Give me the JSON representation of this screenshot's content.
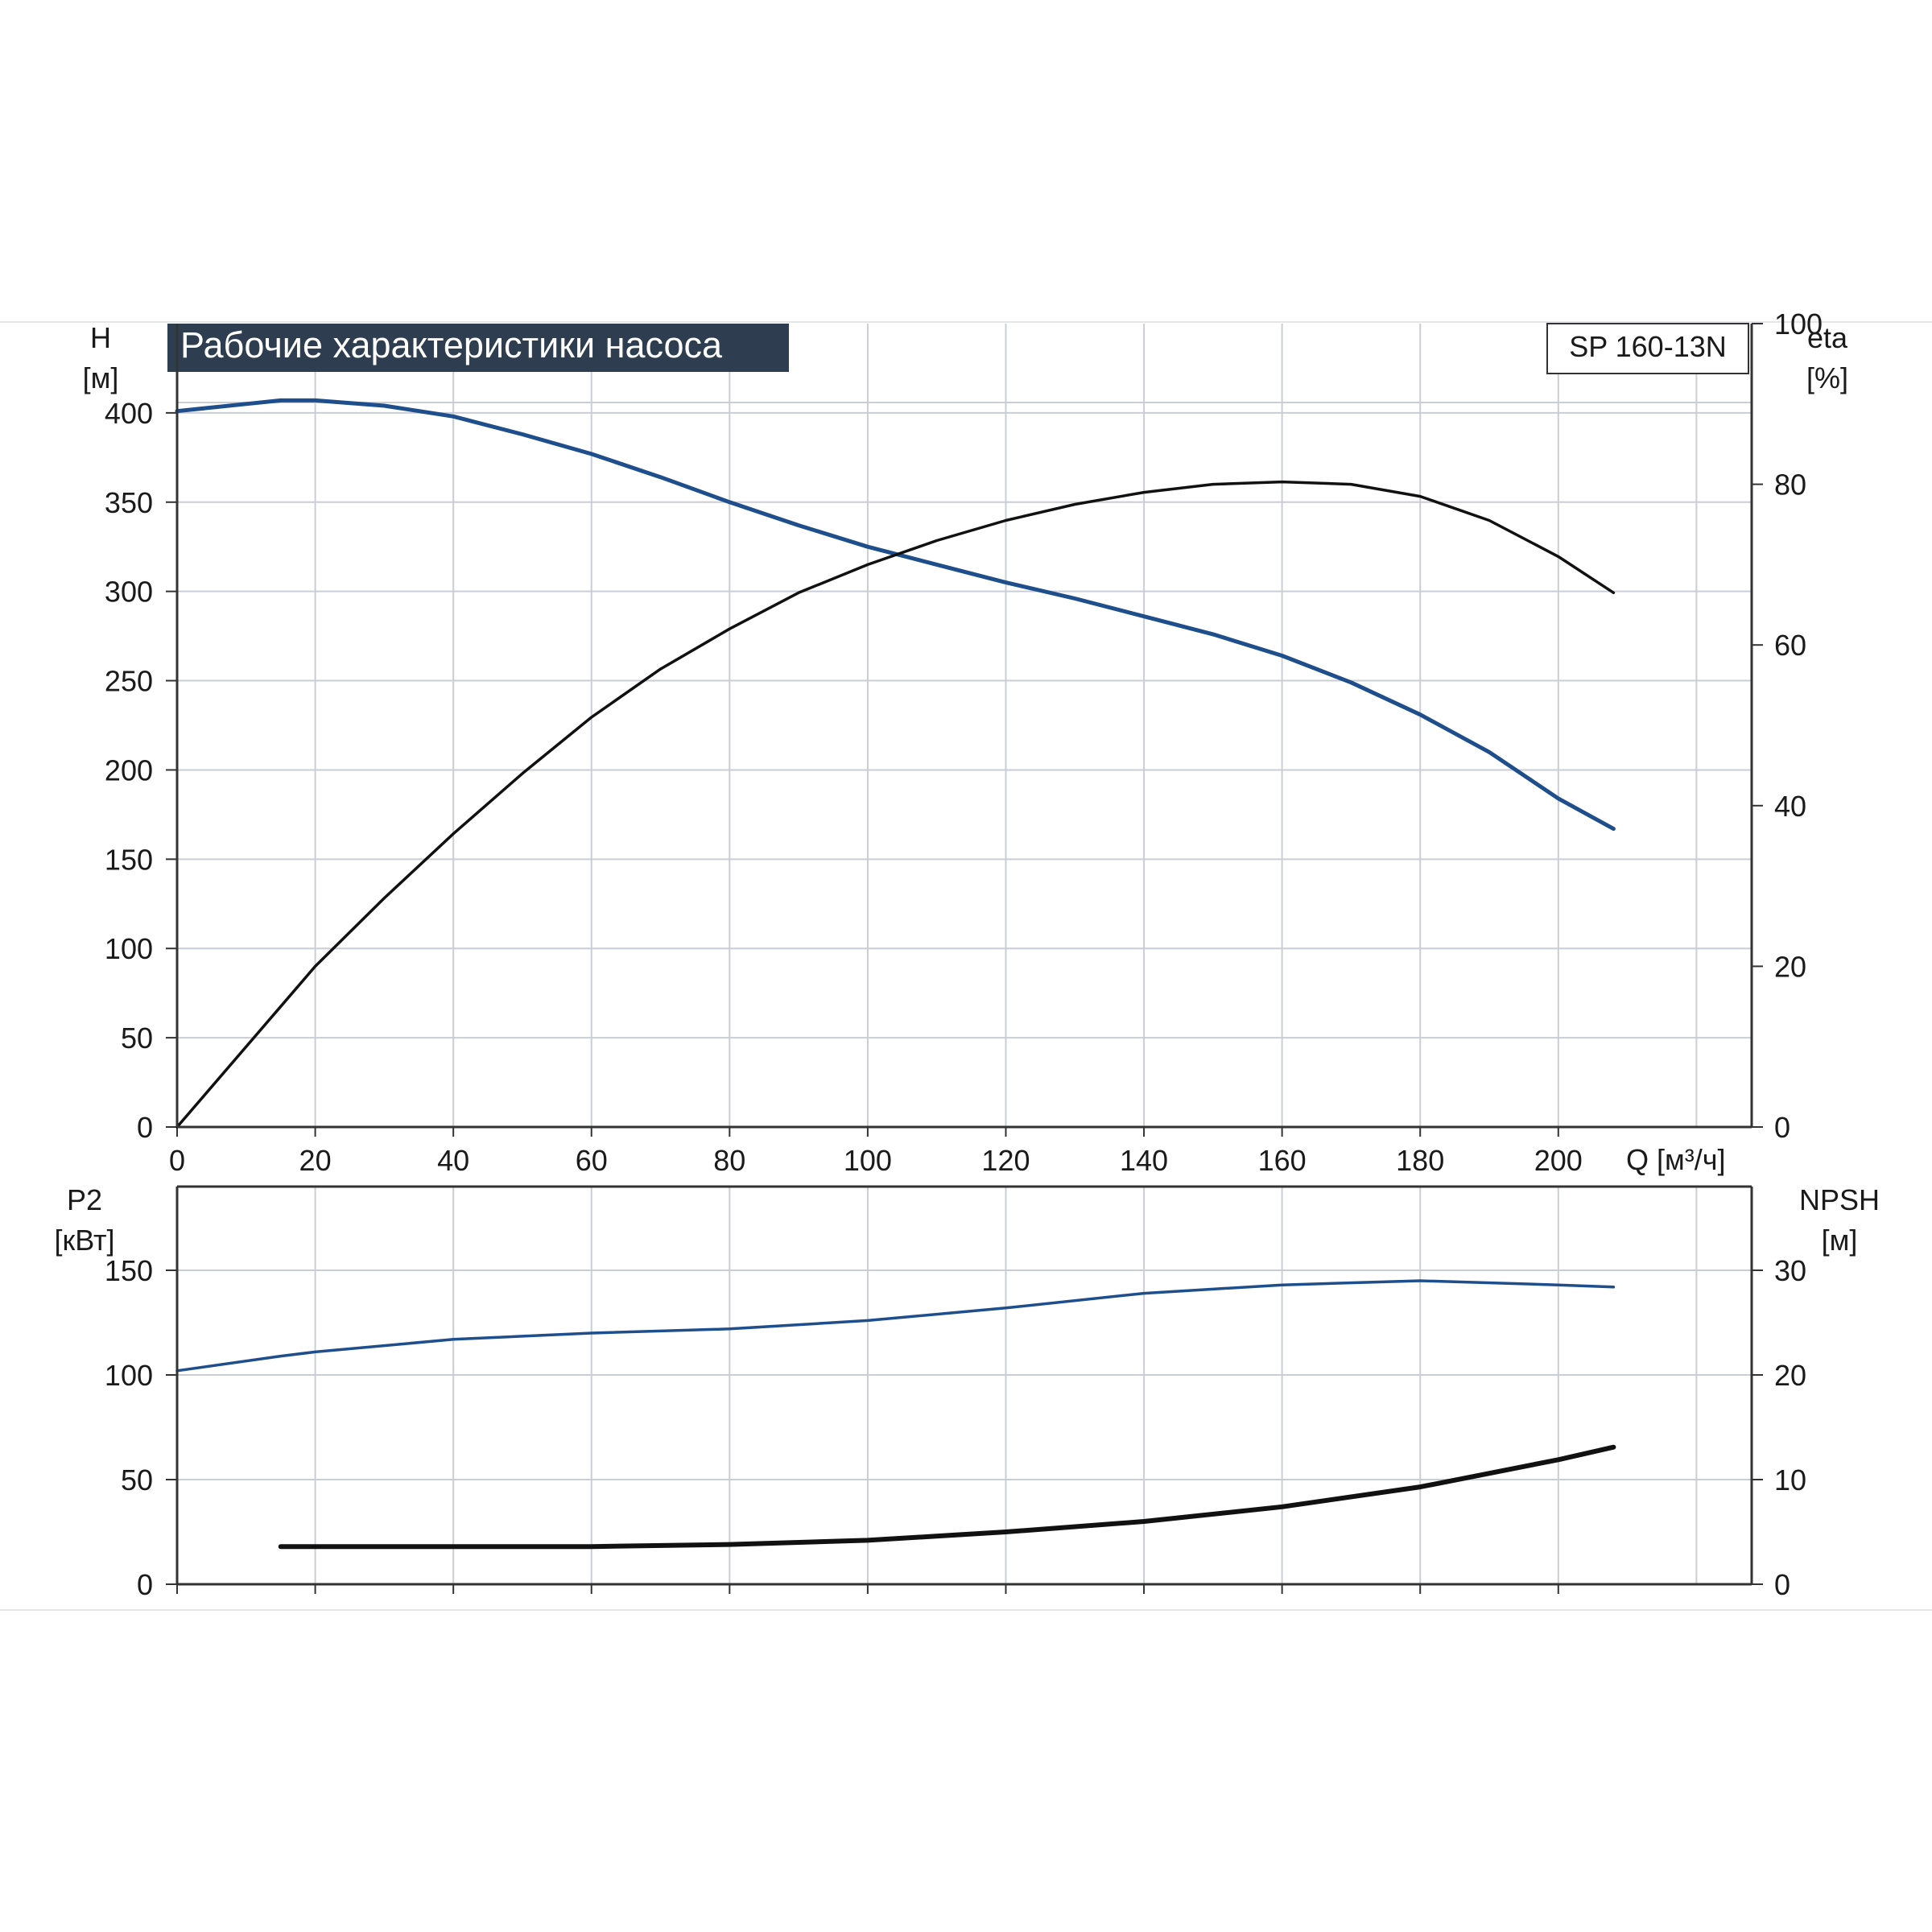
{
  "title": "Рабочие характеристики насоса",
  "model_label": "SP 160-13N",
  "colors": {
    "blue": "#1f4e8c",
    "black": "#111111",
    "grid": "#c9ced6",
    "title_bg": "#2e3d4f"
  },
  "chart_data": [
    {
      "type": "line",
      "name": "upper",
      "x_axis": {
        "label": "Q [м³/ч]",
        "range": [
          0,
          228
        ],
        "ticks": [
          0,
          20,
          40,
          60,
          80,
          100,
          120,
          140,
          160,
          180,
          200
        ]
      },
      "y_left": {
        "label_top": "H",
        "label_unit": "[м]",
        "range": [
          0,
          450
        ],
        "ticks": [
          0,
          50,
          100,
          150,
          200,
          250,
          300,
          350,
          400
        ]
      },
      "y_right": {
        "label_top": "eta",
        "label_unit": "[%]",
        "range": [
          0,
          100
        ],
        "ticks": [
          0,
          20,
          40,
          60,
          80,
          100
        ]
      },
      "grid": true,
      "series": [
        {
          "axis": "left",
          "color": "blue",
          "width": 5,
          "x": [
            0,
            10,
            15,
            20,
            30,
            40,
            50,
            60,
            70,
            80,
            90,
            100,
            110,
            120,
            130,
            140,
            150,
            160,
            170,
            180,
            190,
            200,
            208
          ],
          "y": [
            401,
            405,
            407,
            407,
            404,
            398,
            388,
            377,
            364,
            350,
            337,
            325,
            315,
            305,
            296,
            286,
            276,
            264,
            249,
            231,
            210,
            184,
            167
          ]
        },
        {
          "axis": "right",
          "color": "black",
          "width": 3.5,
          "x": [
            0,
            15,
            20,
            30,
            40,
            50,
            60,
            70,
            80,
            90,
            100,
            110,
            120,
            130,
            140,
            150,
            160,
            170,
            180,
            190,
            200,
            208
          ],
          "y": [
            0,
            15,
            20,
            28.5,
            36.5,
            44,
            51,
            57,
            62,
            66.5,
            70,
            73,
            75.5,
            77.5,
            79,
            80,
            80.3,
            80,
            78.5,
            75.5,
            71,
            66.5
          ]
        }
      ]
    },
    {
      "type": "line",
      "name": "lower",
      "x_axis": {
        "range": [
          0,
          228
        ],
        "ticks": [
          0,
          20,
          40,
          60,
          80,
          100,
          120,
          140,
          160,
          180,
          200
        ]
      },
      "y_left": {
        "label_top": "P2",
        "label_unit": "[кВт]",
        "range": [
          0,
          190
        ],
        "ticks": [
          0,
          50,
          100,
          150
        ]
      },
      "y_right": {
        "label_top": "NPSH",
        "label_unit": "[м]",
        "range": [
          0,
          38
        ],
        "ticks": [
          0,
          10,
          20,
          30
        ]
      },
      "grid": true,
      "series": [
        {
          "axis": "left",
          "color": "blue",
          "width": 3.5,
          "x": [
            0,
            15,
            20,
            40,
            60,
            80,
            100,
            120,
            140,
            160,
            180,
            200,
            208
          ],
          "y": [
            102,
            109,
            111,
            117,
            120,
            122,
            126,
            132,
            139,
            143,
            145,
            143,
            142
          ]
        },
        {
          "axis": "right",
          "color": "black",
          "width": 6,
          "x": [
            15,
            40,
            60,
            80,
            100,
            120,
            140,
            160,
            180,
            200,
            208
          ],
          "y": [
            3.6,
            3.6,
            3.6,
            3.8,
            4.2,
            5.0,
            6.0,
            7.4,
            9.3,
            11.9,
            13.1
          ]
        }
      ]
    }
  ]
}
